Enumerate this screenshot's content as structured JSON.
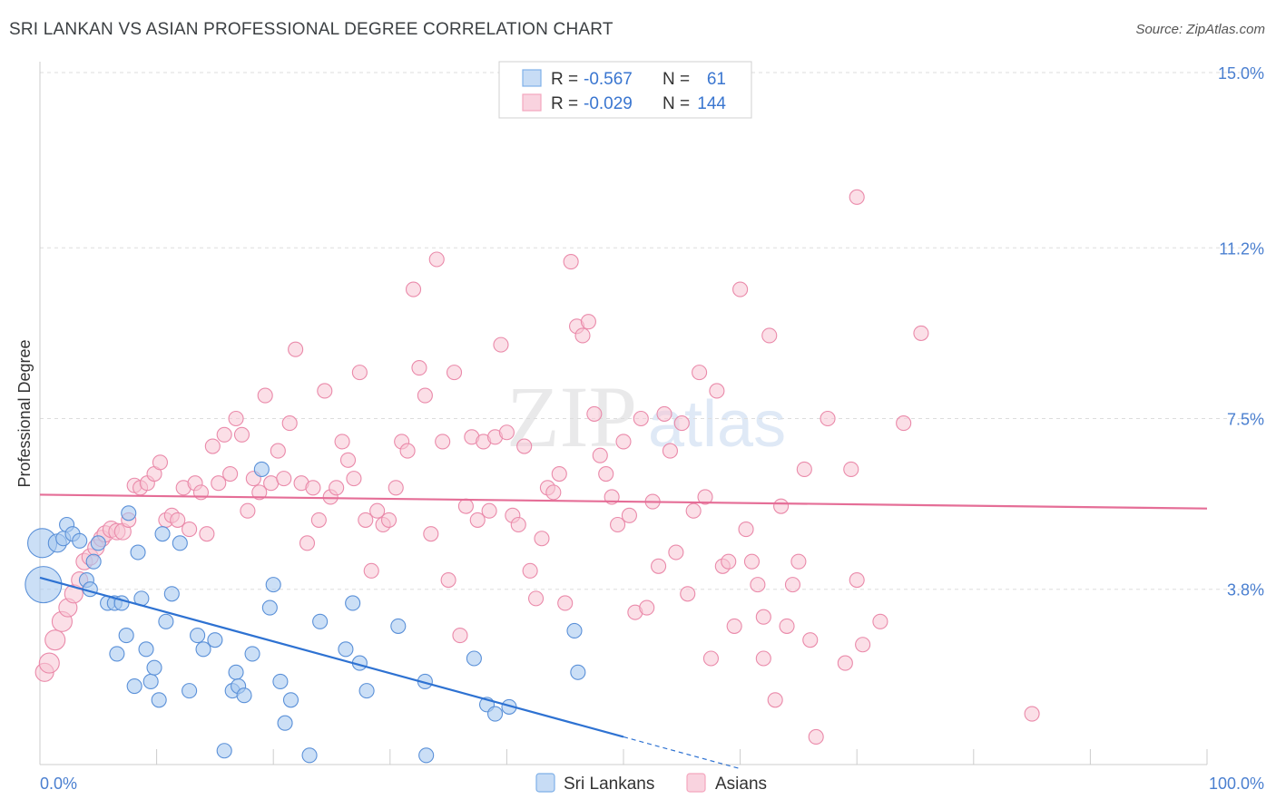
{
  "title": "SRI LANKAN VS ASIAN PROFESSIONAL DEGREE CORRELATION CHART",
  "source": "Source: ZipAtlas.com",
  "watermark": {
    "zip": "ZIP",
    "atlas": "atlas"
  },
  "legend_box": {
    "rows": [
      {
        "r_label": "R =",
        "r_value": "-0.567",
        "n_label": "N =",
        "n_value": "61",
        "color": "#7fb0e8"
      },
      {
        "r_label": "R =",
        "r_value": "-0.029",
        "n_label": "N =",
        "n_value": "144",
        "color": "#f4a6be"
      }
    ]
  },
  "colors": {
    "blue_fill": "#a9c9f0",
    "blue_stroke": "#5a90d8",
    "blue_line": "#2e72d2",
    "pink_fill": "#f7c4d3",
    "pink_stroke": "#ea8aaa",
    "pink_line": "#e56e97",
    "axis_value": "#4a7fd0",
    "grid": "#dddddd"
  },
  "chart_data": {
    "type": "scatter",
    "title": "SRI LANKAN VS ASIAN PROFESSIONAL DEGREE CORRELATION CHART",
    "xlabel": "",
    "ylabel": "Professional Degree",
    "xlim": [
      0,
      100
    ],
    "ylim": [
      0,
      15
    ],
    "x_tick_labels": [
      "0.0%",
      "100.0%"
    ],
    "y_ticks": [
      3.8,
      7.5,
      11.2,
      15.0
    ],
    "y_tick_labels": [
      "3.8%",
      "7.5%",
      "11.2%",
      "15.0%"
    ],
    "grid": "horizontal dashed",
    "legend_placement": "bottom-center",
    "series": [
      {
        "name": "Sri Lankans",
        "r": -0.567,
        "n": 61,
        "trend": {
          "x0": 0,
          "y0": 4.05,
          "x1": 50,
          "y1": 0.6,
          "dashed_to_x": 60
        },
        "points": [
          [
            0.2,
            4.8,
            16
          ],
          [
            0.3,
            3.9,
            20
          ],
          [
            1.5,
            4.8,
            10
          ],
          [
            2,
            4.9,
            8
          ],
          [
            2.3,
            5.2,
            8
          ],
          [
            2.8,
            5.0,
            8
          ],
          [
            3.4,
            4.85,
            8
          ],
          [
            4,
            4.0,
            8
          ],
          [
            4.3,
            3.8,
            8
          ],
          [
            4.6,
            4.4,
            8
          ],
          [
            5,
            4.8,
            8
          ],
          [
            5.8,
            3.5,
            8
          ],
          [
            6.4,
            3.5,
            8
          ],
          [
            6.6,
            2.4,
            8
          ],
          [
            7,
            3.5,
            8
          ],
          [
            7.4,
            2.8,
            8
          ],
          [
            7.6,
            5.45,
            8
          ],
          [
            8.1,
            1.7,
            8
          ],
          [
            8.4,
            4.6,
            8
          ],
          [
            8.7,
            3.6,
            8
          ],
          [
            9.1,
            2.5,
            8
          ],
          [
            9.5,
            1.8,
            8
          ],
          [
            9.8,
            2.1,
            8
          ],
          [
            10.2,
            1.4,
            8
          ],
          [
            10.5,
            5.0,
            8
          ],
          [
            10.8,
            3.1,
            8
          ],
          [
            11.3,
            3.7,
            8
          ],
          [
            12,
            4.8,
            8
          ],
          [
            12.8,
            1.6,
            8
          ],
          [
            13.5,
            2.8,
            8
          ],
          [
            14,
            2.5,
            8
          ],
          [
            15,
            2.7,
            8
          ],
          [
            15.8,
            0.3,
            8
          ],
          [
            16.5,
            1.6,
            8
          ],
          [
            16.8,
            2.0,
            8
          ],
          [
            17,
            1.7,
            8
          ],
          [
            17.5,
            1.5,
            8
          ],
          [
            18.2,
            2.4,
            8
          ],
          [
            19,
            6.4,
            8
          ],
          [
            19.7,
            3.4,
            8
          ],
          [
            20,
            3.9,
            8
          ],
          [
            20.6,
            1.8,
            8
          ],
          [
            21,
            0.9,
            8
          ],
          [
            21.5,
            1.4,
            8
          ],
          [
            23.1,
            0.2,
            8
          ],
          [
            24,
            3.1,
            8
          ],
          [
            26.2,
            2.5,
            8
          ],
          [
            26.8,
            3.5,
            8
          ],
          [
            27.4,
            2.2,
            8
          ],
          [
            28,
            1.6,
            8
          ],
          [
            30.7,
            3.0,
            8
          ],
          [
            33,
            1.8,
            8
          ],
          [
            33.1,
            0.2,
            8
          ],
          [
            37.2,
            2.3,
            8
          ],
          [
            38.3,
            1.3,
            8
          ],
          [
            39,
            1.1,
            8
          ],
          [
            40.2,
            1.25,
            8
          ],
          [
            45.8,
            2.9,
            8
          ],
          [
            46.1,
            2.0,
            8
          ]
        ]
      },
      {
        "name": "Asians",
        "r": -0.029,
        "n": 144,
        "trend": {
          "x0": 0,
          "y0": 5.85,
          "x1": 100,
          "y1": 5.55
        },
        "points": [
          [
            0.4,
            2.0,
            10
          ],
          [
            0.8,
            2.2,
            11
          ],
          [
            1.3,
            2.7,
            11
          ],
          [
            1.9,
            3.1,
            11
          ],
          [
            2.4,
            3.4,
            10
          ],
          [
            2.9,
            3.7,
            10
          ],
          [
            3.4,
            4.0,
            9
          ],
          [
            3.8,
            4.4,
            9
          ],
          [
            4.3,
            4.5,
            9
          ],
          [
            4.8,
            4.7,
            9
          ],
          [
            5.3,
            4.9,
            9
          ],
          [
            5.6,
            5.0,
            9
          ],
          [
            6.1,
            5.1,
            9
          ],
          [
            6.6,
            5.05,
            9
          ],
          [
            7.1,
            5.05,
            9
          ],
          [
            7.6,
            5.3,
            8
          ],
          [
            8.1,
            6.05,
            8
          ],
          [
            8.6,
            6.0,
            8
          ],
          [
            9.2,
            6.1,
            8
          ],
          [
            9.8,
            6.3,
            8
          ],
          [
            10.3,
            6.55,
            8
          ],
          [
            10.8,
            5.3,
            8
          ],
          [
            11.3,
            5.4,
            8
          ],
          [
            11.8,
            5.3,
            8
          ],
          [
            12.3,
            6.0,
            8
          ],
          [
            12.8,
            5.1,
            8
          ],
          [
            13.3,
            6.1,
            8
          ],
          [
            13.8,
            5.9,
            8
          ],
          [
            14.3,
            5.0,
            8
          ],
          [
            14.8,
            6.9,
            8
          ],
          [
            15.3,
            6.1,
            8
          ],
          [
            15.8,
            7.15,
            8
          ],
          [
            16.3,
            6.3,
            8
          ],
          [
            16.8,
            7.5,
            8
          ],
          [
            17.3,
            7.15,
            8
          ],
          [
            17.8,
            5.5,
            8
          ],
          [
            18.3,
            6.2,
            8
          ],
          [
            18.8,
            5.9,
            8
          ],
          [
            19.3,
            8.0,
            8
          ],
          [
            19.8,
            6.1,
            8
          ],
          [
            20.4,
            6.8,
            8
          ],
          [
            20.9,
            6.2,
            8
          ],
          [
            21.4,
            7.4,
            8
          ],
          [
            21.9,
            9.0,
            8
          ],
          [
            22.4,
            6.1,
            8
          ],
          [
            22.9,
            4.8,
            8
          ],
          [
            23.4,
            6.0,
            8
          ],
          [
            23.9,
            5.3,
            8
          ],
          [
            24.4,
            8.1,
            8
          ],
          [
            24.9,
            5.8,
            8
          ],
          [
            25.4,
            6.0,
            8
          ],
          [
            25.9,
            7.0,
            8
          ],
          [
            26.4,
            6.6,
            8
          ],
          [
            26.9,
            6.2,
            8
          ],
          [
            27.4,
            8.5,
            8
          ],
          [
            27.9,
            5.3,
            8
          ],
          [
            28.4,
            4.2,
            8
          ],
          [
            28.9,
            5.5,
            8
          ],
          [
            29.4,
            5.2,
            8
          ],
          [
            29.9,
            5.3,
            8
          ],
          [
            30.5,
            6.0,
            8
          ],
          [
            31.0,
            7.0,
            8
          ],
          [
            31.5,
            6.8,
            8
          ],
          [
            32.0,
            10.3,
            8
          ],
          [
            32.5,
            8.6,
            8
          ],
          [
            33.0,
            8.0,
            8
          ],
          [
            33.5,
            5.0,
            8
          ],
          [
            34.0,
            10.95,
            8
          ],
          [
            34.5,
            7.0,
            8
          ],
          [
            35.0,
            4.0,
            8
          ],
          [
            35.5,
            8.5,
            8
          ],
          [
            36.0,
            2.8,
            8
          ],
          [
            36.5,
            5.6,
            8
          ],
          [
            37.0,
            7.1,
            8
          ],
          [
            37.5,
            5.3,
            8
          ],
          [
            38.0,
            7.0,
            8
          ],
          [
            38.5,
            5.5,
            8
          ],
          [
            39.0,
            7.1,
            8
          ],
          [
            39.5,
            9.1,
            8
          ],
          [
            40.0,
            7.2,
            8
          ],
          [
            40.5,
            5.4,
            8
          ],
          [
            41.0,
            5.2,
            8
          ],
          [
            41.5,
            6.9,
            8
          ],
          [
            42.0,
            4.2,
            8
          ],
          [
            42.5,
            3.6,
            8
          ],
          [
            43.0,
            4.9,
            8
          ],
          [
            43.5,
            6.0,
            8
          ],
          [
            44.0,
            5.9,
            8
          ],
          [
            44.5,
            6.3,
            8
          ],
          [
            45.0,
            3.5,
            8
          ],
          [
            45.5,
            10.9,
            8
          ],
          [
            46.0,
            9.5,
            8
          ],
          [
            46.5,
            9.3,
            8
          ],
          [
            47.0,
            9.6,
            8
          ],
          [
            47.5,
            7.6,
            8
          ],
          [
            48.0,
            6.7,
            8
          ],
          [
            48.5,
            6.3,
            8
          ],
          [
            49.0,
            5.8,
            8
          ],
          [
            49.5,
            5.2,
            8
          ],
          [
            50.0,
            7.0,
            8
          ],
          [
            50.5,
            5.4,
            8
          ],
          [
            51.0,
            3.3,
            8
          ],
          [
            51.5,
            7.5,
            8
          ],
          [
            52.0,
            3.4,
            8
          ],
          [
            52.5,
            5.7,
            8
          ],
          [
            53.0,
            4.3,
            8
          ],
          [
            53.5,
            7.6,
            8
          ],
          [
            54.0,
            6.8,
            8
          ],
          [
            54.5,
            4.6,
            8
          ],
          [
            55.0,
            7.4,
            8
          ],
          [
            55.5,
            3.7,
            8
          ],
          [
            56.0,
            5.5,
            8
          ],
          [
            56.5,
            8.5,
            8
          ],
          [
            57.0,
            5.8,
            8
          ],
          [
            57.5,
            2.3,
            8
          ],
          [
            58.0,
            8.1,
            8
          ],
          [
            58.5,
            4.3,
            8
          ],
          [
            59.0,
            4.4,
            8
          ],
          [
            59.5,
            3.0,
            8
          ],
          [
            60.0,
            10.3,
            8
          ],
          [
            60.5,
            5.1,
            8
          ],
          [
            61.0,
            4.4,
            8
          ],
          [
            61.5,
            3.9,
            8
          ],
          [
            62.0,
            3.2,
            8
          ],
          [
            62.5,
            9.3,
            8
          ],
          [
            63.0,
            1.4,
            8
          ],
          [
            63.5,
            5.6,
            8
          ],
          [
            64.0,
            3.0,
            8
          ],
          [
            64.5,
            3.9,
            8
          ],
          [
            65.0,
            4.4,
            8
          ],
          [
            65.5,
            6.4,
            8
          ],
          [
            66.0,
            2.7,
            8
          ],
          [
            66.5,
            0.6,
            8
          ],
          [
            67.5,
            7.5,
            8
          ],
          [
            69.0,
            2.2,
            8
          ],
          [
            69.5,
            6.4,
            8
          ],
          [
            70.0,
            4.0,
            8
          ],
          [
            70.5,
            2.6,
            8
          ],
          [
            72.0,
            3.1,
            8
          ],
          [
            74.0,
            7.4,
            8
          ],
          [
            75.5,
            9.35,
            8
          ],
          [
            70.0,
            12.3,
            8
          ],
          [
            85.0,
            1.1,
            8
          ],
          [
            62.0,
            2.3,
            8
          ]
        ]
      }
    ]
  }
}
